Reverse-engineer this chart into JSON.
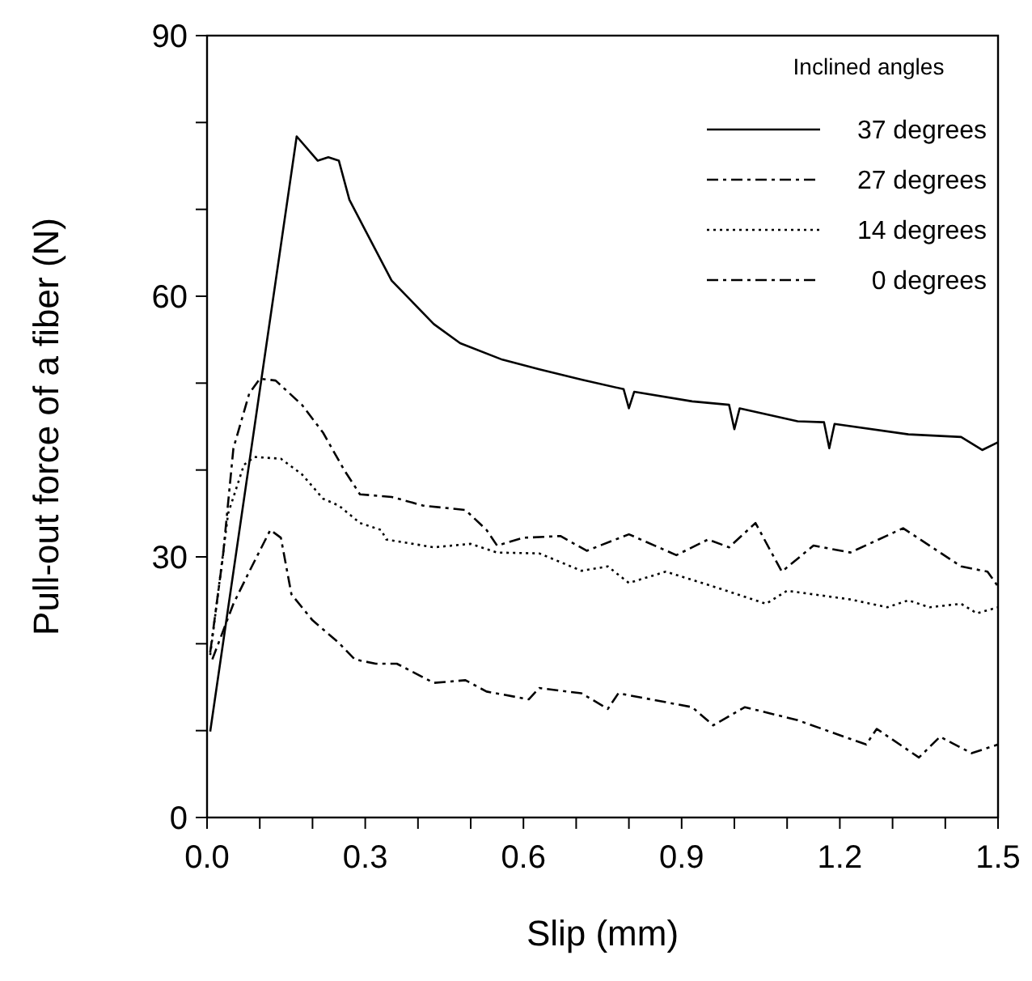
{
  "chart_data": {
    "type": "line",
    "xlabel": "Slip (mm)",
    "ylabel": "Pull-out force of a fiber (N)",
    "legend_title": "Inclined angles",
    "legend": "top right",
    "grid": false,
    "marker": "none",
    "xlim": [
      0,
      1.5
    ],
    "ylim": [
      0,
      90
    ],
    "xticks": [
      {
        "value": 0,
        "label": "0.0"
      },
      {
        "value": 0.1,
        "label": null
      },
      {
        "value": 0.2,
        "label": null
      },
      {
        "value": 0.3,
        "label": "0.3"
      },
      {
        "value": 0.4,
        "label": null
      },
      {
        "value": 0.5,
        "label": null
      },
      {
        "value": 0.6,
        "label": "0.6"
      },
      {
        "value": 0.7,
        "label": null
      },
      {
        "value": 0.8,
        "label": null
      },
      {
        "value": 0.9,
        "label": "0.9"
      },
      {
        "value": 1.0,
        "label": null
      },
      {
        "value": 1.1,
        "label": null
      },
      {
        "value": 1.2,
        "label": "1.2"
      },
      {
        "value": 1.3,
        "label": null
      },
      {
        "value": 1.4,
        "label": null
      },
      {
        "value": 1.5,
        "label": "1.5"
      }
    ],
    "yticks": [
      0,
      {
        "value": 10,
        "label": null
      },
      {
        "value": 20,
        "label": null
      },
      30,
      {
        "value": 40,
        "label": null
      },
      {
        "value": 50,
        "label": null
      },
      60,
      {
        "value": 70,
        "label": null
      },
      {
        "value": 80,
        "label": null
      },
      90
    ],
    "series": [
      {
        "name": "37 degrees",
        "color": "#000000",
        "line_style": "solid",
        "x": [
          0.006,
          0.17,
          0.21,
          0.23,
          0.25,
          0.27,
          0.3,
          0.35,
          0.43,
          0.48,
          0.56,
          0.63,
          0.71,
          0.79,
          0.8,
          0.81,
          0.92,
          0.99,
          1.0,
          1.01,
          1.12,
          1.17,
          1.18,
          1.19,
          1.33,
          1.43,
          1.47,
          1.5
        ],
        "values": [
          9.9,
          78.4,
          75.6,
          76,
          75.6,
          71.1,
          67.6,
          61.8,
          56.8,
          54.6,
          52.7,
          51.6,
          50.4,
          49.3,
          47.1,
          49,
          47.9,
          47.5,
          44.7,
          47.1,
          45.6,
          45.5,
          42.5,
          45.3,
          44.1,
          43.8,
          42.3,
          43.2
        ]
      },
      {
        "name": "27 degrees",
        "color": "#000000",
        "line_style": "dashed",
        "x": [
          0.006,
          0.03,
          0.05,
          0.08,
          0.1,
          0.13,
          0.18,
          0.22,
          0.26,
          0.29,
          0.35,
          0.41,
          0.49,
          0.53,
          0.55,
          0.6,
          0.67,
          0.72,
          0.8,
          0.89,
          0.95,
          0.99,
          1.04,
          1.09,
          1.15,
          1.22,
          1.32,
          1.43,
          1.48,
          1.5
        ],
        "values": [
          19,
          30,
          42.5,
          48.8,
          50.5,
          50.3,
          47.5,
          44.3,
          40,
          37.2,
          36.9,
          35.9,
          35.4,
          33.1,
          31.3,
          32.2,
          32.4,
          30.7,
          32.6,
          30.2,
          32,
          31.1,
          33.9,
          28.3,
          31.3,
          30.5,
          33.3,
          28.9,
          28.3,
          26.6
        ]
      },
      {
        "name": "14 degrees",
        "color": "#000000",
        "line_style": "dotted",
        "x": [
          0.006,
          0.04,
          0.07,
          0.09,
          0.14,
          0.18,
          0.22,
          0.25,
          0.29,
          0.33,
          0.34,
          0.43,
          0.5,
          0.55,
          0.63,
          0.71,
          0.76,
          0.8,
          0.87,
          0.97,
          1.06,
          1.1,
          1.22,
          1.29,
          1.33,
          1.37,
          1.43,
          1.46,
          1.5
        ],
        "values": [
          18.7,
          35,
          40.6,
          41.5,
          41.3,
          39.5,
          36.7,
          35.9,
          33.9,
          33.1,
          32,
          31.1,
          31.5,
          30.5,
          30.4,
          28.4,
          28.9,
          27,
          28.3,
          26.4,
          24.6,
          26.1,
          25.1,
          24.2,
          25,
          24.2,
          24.6,
          23.5,
          24.2
        ]
      },
      {
        "name": "0 degrees",
        "color": "#000000",
        "line_style": "dashed",
        "x": [
          0.01,
          0.05,
          0.08,
          0.12,
          0.14,
          0.16,
          0.2,
          0.25,
          0.28,
          0.32,
          0.36,
          0.43,
          0.49,
          0.53,
          0.61,
          0.63,
          0.71,
          0.76,
          0.78,
          0.92,
          0.96,
          1.02,
          1.12,
          1.25,
          1.27,
          1.35,
          1.39,
          1.45,
          1.5
        ],
        "values": [
          18.2,
          24.6,
          28.3,
          33.1,
          32.2,
          25.7,
          22.7,
          20.1,
          18.2,
          17.7,
          17.7,
          15.5,
          15.8,
          14.5,
          13.6,
          14.9,
          14.3,
          12.5,
          14.3,
          12.7,
          10.6,
          12.7,
          11.2,
          8.4,
          10.2,
          6.9,
          9.3,
          7.4,
          8.4
        ]
      }
    ]
  }
}
